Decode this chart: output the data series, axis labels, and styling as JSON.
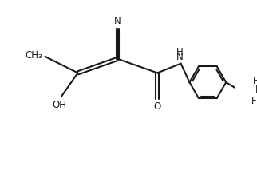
{
  "bg_color": "#ffffff",
  "line_color": "#1a1a1a",
  "line_width": 1.5,
  "font_size": 8.5,
  "figsize": [
    3.22,
    2.18
  ],
  "dpi": 100,
  "xlim": [
    0,
    10
  ],
  "ylim": [
    0,
    6.8
  ]
}
